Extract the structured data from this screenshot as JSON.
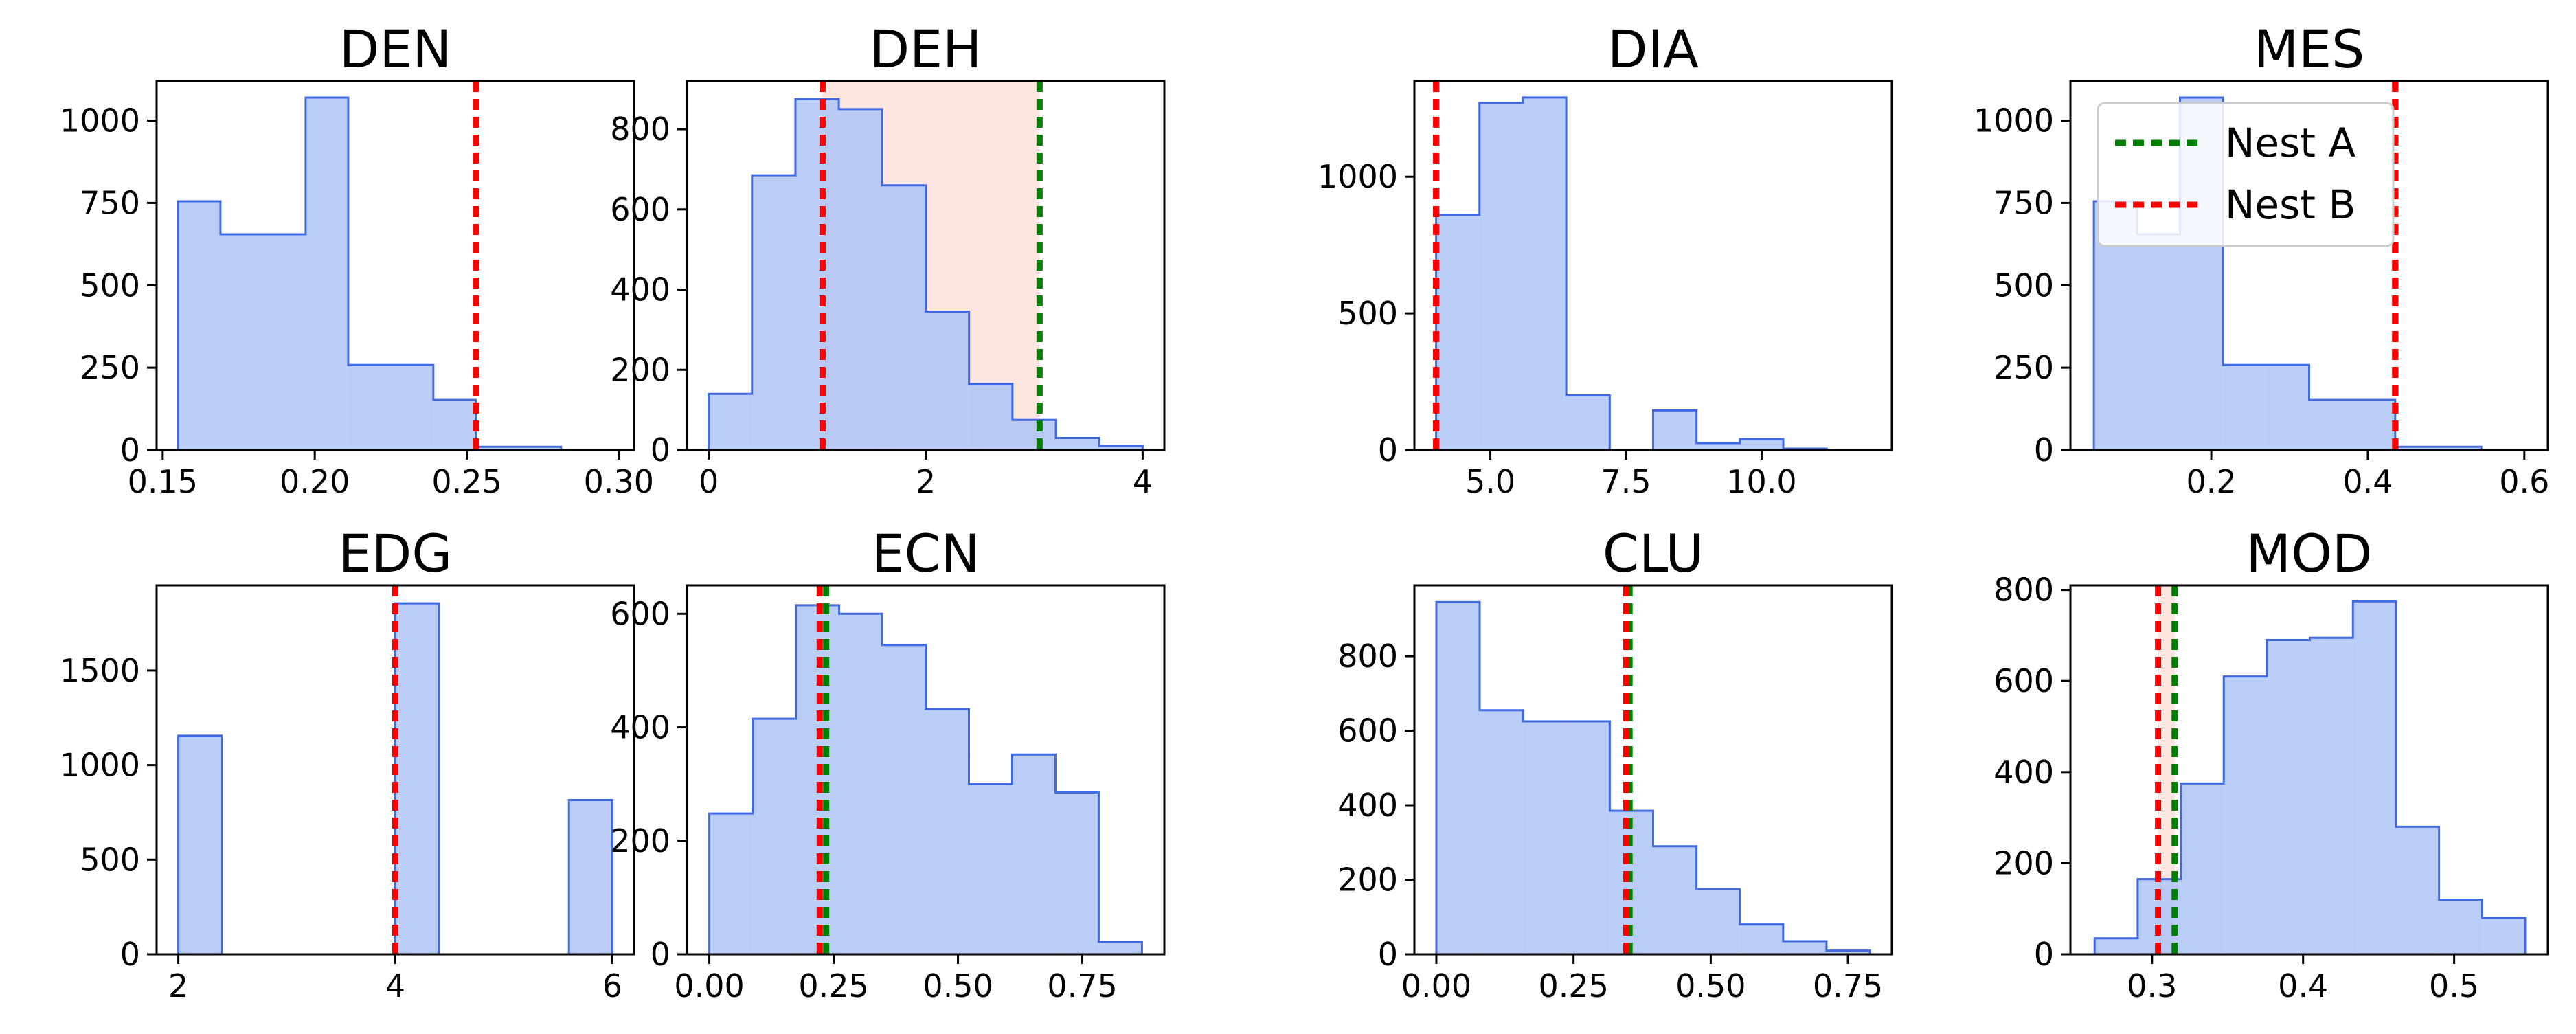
{
  "chart_data": [
    {
      "type": "histogram",
      "title": "DEN",
      "xlim": [
        0.148,
        0.305
      ],
      "ylim": [
        0,
        1120
      ],
      "xticks": [
        0.15,
        0.2,
        0.25,
        0.3
      ],
      "xtick_labels": [
        "0.15",
        "0.20",
        "0.25",
        "0.30"
      ],
      "yticks": [
        0,
        250,
        500,
        750,
        1000
      ],
      "ytick_labels": [
        "0",
        "250",
        "500",
        "750",
        "1000"
      ],
      "bins": [
        0.155,
        0.169,
        0.183,
        0.197,
        0.211,
        0.225,
        0.239,
        0.253,
        0.267,
        0.281,
        0.295
      ],
      "values": [
        755,
        655,
        655,
        1070,
        258,
        258,
        152,
        10,
        10,
        0
      ],
      "nest_a": 0.253,
      "nest_b": 0.253
    },
    {
      "type": "histogram",
      "title": "DEH",
      "xlim": [
        -0.2,
        4.2
      ],
      "ylim": [
        0,
        920
      ],
      "xticks": [
        0,
        2,
        4
      ],
      "xtick_labels": [
        "0",
        "2",
        "4"
      ],
      "yticks": [
        0,
        200,
        400,
        600,
        800
      ],
      "ytick_labels": [
        "0",
        "200",
        "400",
        "600",
        "800"
      ],
      "bins": [
        0,
        0.4,
        0.8,
        1.2,
        1.6,
        2.0,
        2.4,
        2.8,
        3.2,
        3.6,
        4.0
      ],
      "values": [
        140,
        685,
        875,
        850,
        660,
        345,
        165,
        75,
        30,
        10
      ],
      "shaded_range": [
        1.05,
        3.05
      ],
      "nest_a": 3.05,
      "nest_b": 1.05
    },
    {
      "type": "histogram",
      "title": "DIA",
      "xlim": [
        3.6,
        12.4
      ],
      "ylim": [
        0,
        1350
      ],
      "xticks": [
        5.0,
        7.5,
        10.0
      ],
      "xtick_labels": [
        "5.0",
        "7.5",
        "10.0"
      ],
      "yticks": [
        0,
        500,
        1000
      ],
      "ytick_labels": [
        "0",
        "500",
        "1000"
      ],
      "bins": [
        4,
        4.8,
        5.6,
        6.4,
        7.2,
        8.0,
        8.8,
        9.6,
        10.4,
        11.2,
        12.0
      ],
      "values": [
        860,
        1270,
        1290,
        200,
        0,
        145,
        25,
        40,
        5,
        0
      ],
      "nest_a": 4.0,
      "nest_b": 4.0
    },
    {
      "type": "histogram",
      "title": "MES",
      "xlim": [
        0.02,
        0.63
      ],
      "ylim": [
        0,
        1120
      ],
      "xticks": [
        0.2,
        0.4,
        0.6
      ],
      "xtick_labels": [
        "0.2",
        "0.4",
        "0.6"
      ],
      "yticks": [
        0,
        250,
        500,
        750,
        1000
      ],
      "ytick_labels": [
        "0",
        "250",
        "500",
        "750",
        "1000"
      ],
      "bins": [
        0.05,
        0.105,
        0.16,
        0.215,
        0.27,
        0.325,
        0.38,
        0.435,
        0.49,
        0.545,
        0.6
      ],
      "values": [
        755,
        655,
        1070,
        258,
        258,
        152,
        152,
        10,
        10,
        0
      ],
      "nest_a": 0.435,
      "nest_b": 0.435,
      "legend": {
        "placement": "upper-left",
        "entries": [
          {
            "label": "Nest A",
            "color": "#008000"
          },
          {
            "label": "Nest B",
            "color": "#ff0000"
          }
        ]
      }
    },
    {
      "type": "histogram",
      "title": "EDG",
      "xlim": [
        1.8,
        6.2
      ],
      "ylim": [
        0,
        1950
      ],
      "xticks": [
        2,
        4,
        6
      ],
      "xtick_labels": [
        "2",
        "4",
        "6"
      ],
      "yticks": [
        0,
        500,
        1000,
        1500
      ],
      "ytick_labels": [
        "0",
        "500",
        "1000",
        "1500"
      ],
      "bins": [
        2.0,
        2.4,
        2.8,
        3.2,
        3.6,
        4.0,
        4.4,
        4.8,
        5.2,
        5.6,
        6.0
      ],
      "values": [
        1155,
        0,
        0,
        0,
        0,
        1855,
        0,
        0,
        0,
        815
      ],
      "nest_a": 4.0,
      "nest_b": 4.0
    },
    {
      "type": "histogram",
      "title": "ECN",
      "xlim": [
        -0.045,
        0.915
      ],
      "ylim": [
        0,
        650
      ],
      "xticks": [
        0.0,
        0.25,
        0.5,
        0.75
      ],
      "xtick_labels": [
        "0.00",
        "0.25",
        "0.50",
        "0.75"
      ],
      "yticks": [
        0,
        200,
        400,
        600
      ],
      "ytick_labels": [
        "0",
        "200",
        "400",
        "600"
      ],
      "bins": [
        0,
        0.087,
        0.174,
        0.261,
        0.348,
        0.435,
        0.522,
        0.609,
        0.696,
        0.783,
        0.87
      ],
      "values": [
        248,
        415,
        615,
        600,
        545,
        432,
        300,
        352,
        285,
        22
      ],
      "bins_note": "",
      "nest_a": 0.235,
      "nest_b": 0.222
    },
    {
      "type": "histogram",
      "title": "CLU",
      "xlim": [
        -0.04,
        0.83
      ],
      "ylim": [
        0,
        990
      ],
      "xticks": [
        0.0,
        0.25,
        0.5,
        0.75
      ],
      "xtick_labels": [
        "0.00",
        "0.25",
        "0.50",
        "0.75"
      ],
      "yticks": [
        0,
        200,
        400,
        600,
        800
      ],
      "ytick_labels": [
        "0",
        "200",
        "400",
        "600",
        "800"
      ],
      "bins": [
        0,
        0.079,
        0.158,
        0.237,
        0.316,
        0.395,
        0.474,
        0.553,
        0.632,
        0.711,
        0.79
      ],
      "values": [
        945,
        655,
        625,
        625,
        385,
        290,
        175,
        80,
        35,
        10
      ],
      "nest_a": 0.352,
      "nest_b": 0.346
    },
    {
      "type": "histogram",
      "title": "MOD",
      "xlim": [
        0.246,
        0.562
      ],
      "ylim": [
        0,
        810
      ],
      "xticks": [
        0.3,
        0.4,
        0.5
      ],
      "xtick_labels": [
        "0.3",
        "0.4",
        "0.5"
      ],
      "yticks": [
        0,
        200,
        400,
        600,
        800
      ],
      "ytick_labels": [
        "0",
        "200",
        "400",
        "600",
        "800"
      ],
      "bins": [
        0.262,
        0.2905,
        0.319,
        0.3475,
        0.376,
        0.4045,
        0.433,
        0.4615,
        0.49,
        0.5185,
        0.547
      ],
      "values": [
        35,
        165,
        375,
        610,
        690,
        695,
        775,
        280,
        120,
        80
      ],
      "shaded_range": [
        0.304,
        0.315
      ],
      "nest_a": 0.315,
      "nest_b": 0.304
    }
  ],
  "colors": {
    "bar_fill": "#aec4f4",
    "bar_edge": "#4169e1",
    "shade": "#fde0da",
    "nest_a": "#008000",
    "nest_b": "#ff0000"
  }
}
